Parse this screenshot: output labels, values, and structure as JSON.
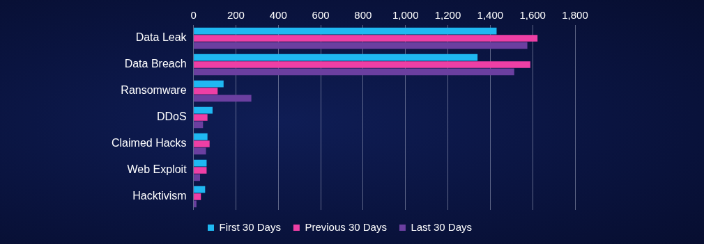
{
  "chart_data": {
    "type": "bar",
    "orientation": "horizontal",
    "categories": [
      "Data Leak",
      "Data Breach",
      "Ransomware",
      "DDoS",
      "Claimed Hacks",
      "Web Exploit",
      "Hacktivism"
    ],
    "series": [
      {
        "name": "First 30 Days",
        "color": "#1fb8f2",
        "values": [
          1430,
          1340,
          142,
          90,
          66,
          62,
          55
        ]
      },
      {
        "name": "Previous 30 Days",
        "color": "#ee3fa5",
        "values": [
          1623,
          1589,
          114,
          66,
          76,
          62,
          35
        ]
      },
      {
        "name": "Last 30 Days",
        "color": "#6b3fa0",
        "values": [
          1575,
          1513,
          273,
          45,
          59,
          31,
          14
        ]
      }
    ],
    "xlim": [
      0,
      1800
    ],
    "xticks": [
      0,
      200,
      400,
      600,
      800,
      1000,
      1200,
      1400,
      1600,
      1800
    ],
    "grid": true,
    "legend": "bottom"
  }
}
